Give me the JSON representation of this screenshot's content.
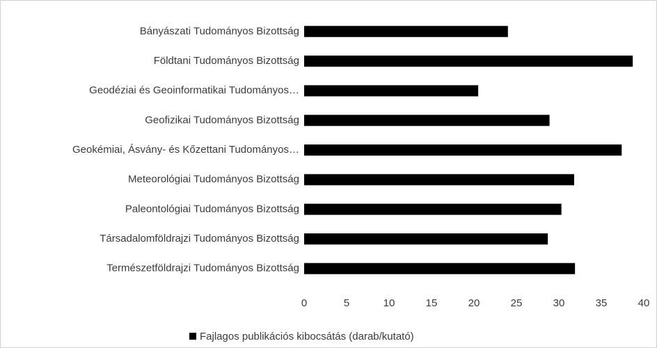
{
  "chart_data": {
    "type": "bar",
    "orientation": "horizontal",
    "categories": [
      "Bányászati Tudományos Bizottság",
      "Földtani Tudományos Bizottság",
      "Geodéziai és Geoinformatikai Tudományos…",
      "Geofizikai Tudományos Bizottság",
      "Geokémiai, Ásvány- és Kőzettani Tudományos…",
      "Meteorológiai Tudományos Bizottság",
      "Paleontológiai Tudományos Bizottság",
      "Társadalomföldrajzi Tudományos Bizottság",
      "Természetföldrajzi Tudományos Bizottság"
    ],
    "series": [
      {
        "name": "Fajlagos publikációs kibocsátás (darab/kutató)",
        "color": "#000000",
        "values": [
          24.0,
          38.7,
          20.5,
          28.9,
          37.4,
          31.8,
          30.3,
          28.7,
          31.9
        ]
      }
    ],
    "xlim": [
      0,
      40
    ],
    "xticks": [
      0,
      5,
      10,
      15,
      20,
      25,
      30,
      35,
      40
    ],
    "grid": false,
    "legend": "bottom"
  }
}
